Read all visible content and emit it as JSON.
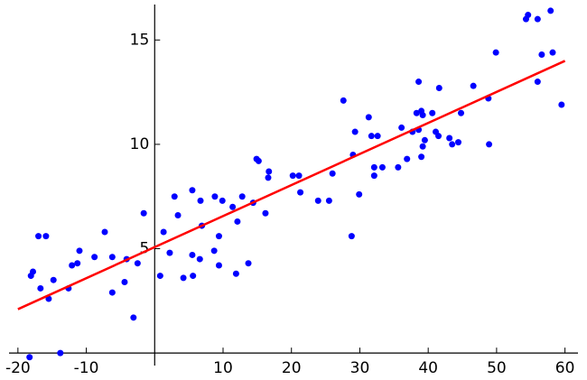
{
  "chart_data": {
    "type": "scatter",
    "xlim": [
      -21.3,
      61.9
    ],
    "ylim": [
      -0.6,
      16.7
    ],
    "xticks": [
      -20,
      -10,
      10,
      20,
      30,
      40,
      50,
      60
    ],
    "yticks": [
      5,
      10,
      15
    ],
    "series": [
      {
        "color": "#0000ff",
        "marker": "dot",
        "x": [
          -18.1,
          -17.8,
          -18.3,
          -17.0,
          -15.9,
          -16.7,
          -15.5,
          -14.8,
          -13.8,
          -12.6,
          -12.1,
          -11.3,
          -11.0,
          -8.8,
          -7.3,
          -6.2,
          -6.2,
          -4.4,
          -4.1,
          -3.1,
          -2.5,
          -1.6,
          0.8,
          1.3,
          2.2,
          2.9,
          3.4,
          4.2,
          5.5,
          5.5,
          5.6,
          6.6,
          6.7,
          6.9,
          8.7,
          8.8,
          9.4,
          9.4,
          9.9,
          11.4,
          11.9,
          12.1,
          12.8,
          13.7,
          14.4,
          14.9,
          15.2,
          16.2,
          16.6,
          16.7,
          20.2,
          21.1,
          21.3,
          23.9,
          25.5,
          26.0,
          27.6,
          28.8,
          29.0,
          29.3,
          29.9,
          31.3,
          31.7,
          32.1,
          32.1,
          32.6,
          33.3,
          35.6,
          36.1,
          36.9,
          37.7,
          38.3,
          38.6,
          38.6,
          39.0,
          39.0,
          39.2,
          39.5,
          39.2,
          40.6,
          41.1,
          41.5,
          41.6,
          43.1,
          43.5,
          44.4,
          44.8,
          46.6,
          48.8,
          48.9,
          49.9,
          54.3,
          54.6,
          56.0,
          56.0,
          56.6,
          57.9,
          58.2,
          59.5
        ],
        "values": [
          3.7,
          3.9,
          -0.2,
          5.6,
          5.6,
          3.1,
          2.6,
          3.5,
          0.0,
          3.1,
          4.2,
          4.3,
          4.9,
          4.6,
          5.8,
          4.6,
          2.9,
          3.4,
          4.5,
          1.7,
          4.3,
          6.7,
          3.7,
          5.8,
          4.8,
          7.5,
          6.6,
          3.6,
          7.8,
          4.7,
          3.7,
          4.5,
          7.3,
          6.1,
          4.9,
          7.5,
          4.2,
          5.6,
          7.3,
          7.0,
          3.8,
          6.3,
          7.5,
          4.3,
          7.2,
          9.3,
          9.2,
          6.7,
          8.4,
          8.7,
          8.5,
          8.5,
          7.7,
          7.3,
          7.3,
          8.6,
          12.1,
          5.6,
          9.5,
          10.6,
          7.6,
          11.3,
          10.4,
          8.5,
          8.9,
          10.4,
          8.9,
          8.9,
          10.8,
          9.3,
          10.6,
          11.5,
          13.0,
          10.7,
          9.4,
          11.6,
          11.4,
          10.2,
          9.9,
          11.5,
          10.6,
          10.4,
          12.7,
          10.3,
          10.0,
          10.1,
          11.5,
          12.8,
          12.2,
          10.0,
          14.4,
          16.0,
          16.2,
          16.0,
          13.0,
          14.3,
          16.4,
          14.4,
          11.9
        ]
      },
      {
        "color": "#ff0000",
        "marker": "line",
        "x": [
          -20,
          60
        ],
        "values": [
          2.1,
          14.0
        ]
      }
    ]
  }
}
